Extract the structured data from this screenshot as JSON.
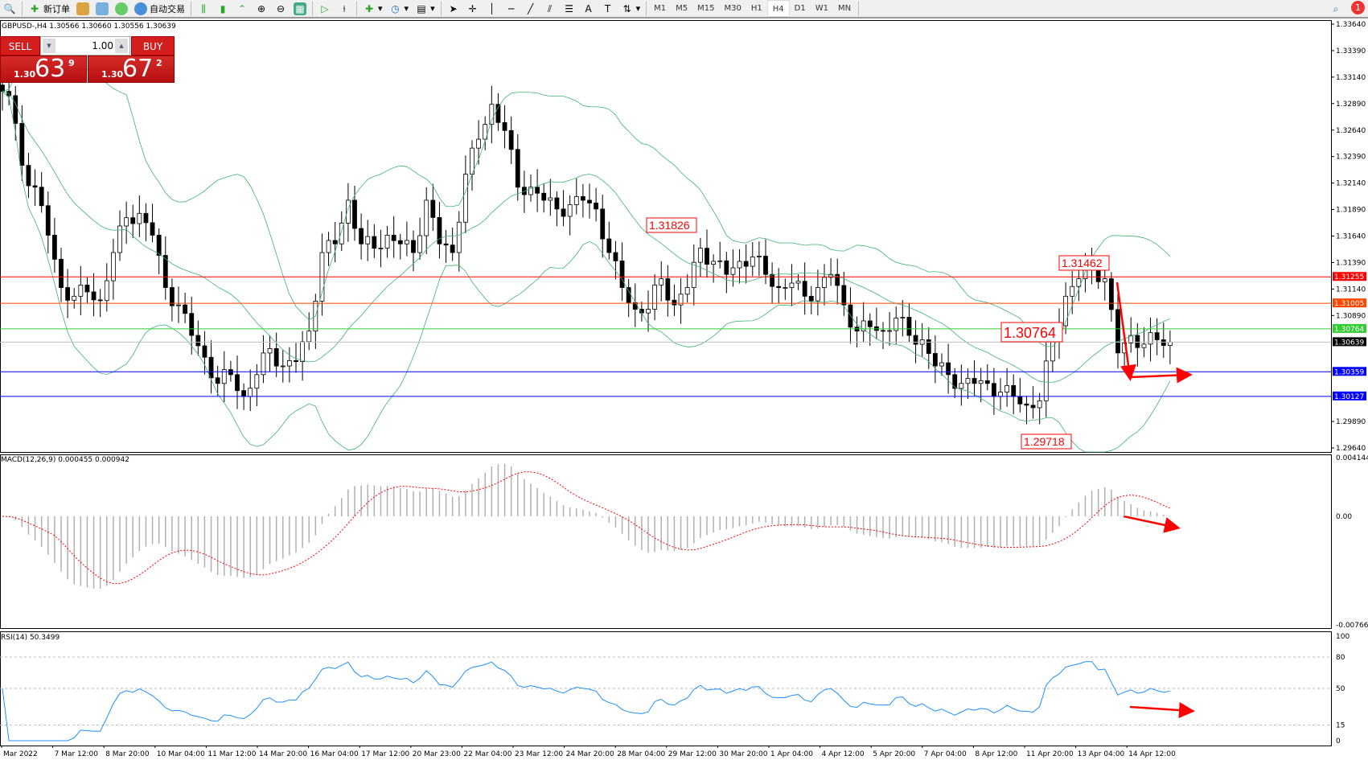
{
  "toolbar": {
    "new_order": "新订单",
    "auto_trading": "自动交易",
    "timeframes": [
      "M1",
      "M5",
      "M15",
      "M30",
      "H1",
      "H4",
      "D1",
      "W1",
      "MN"
    ],
    "selected_timeframe": "H4",
    "notifications": "1"
  },
  "chart_header": "GBPUSD-,H4  1.30566 1.30660 1.30556 1.30639",
  "trade_panel": {
    "sell": "SELL",
    "buy": "BUY",
    "lot": "1.00",
    "sell_small": "1.30",
    "sell_big": "63",
    "sell_tiny": "9",
    "buy_small": "1.30",
    "buy_big": "67",
    "buy_tiny": "2"
  },
  "macd_header": "MACD(12,26,9) 0.000455 0.000942",
  "rsi_header": "RSI(14) 50.3499",
  "chart_data": {
    "type": "candlestick",
    "symbol": "GBPUSD",
    "timeframe": "H4",
    "ylim": [
      1.2964,
      1.3364
    ],
    "price_ticks": [
      "1.33640",
      "1.33390",
      "1.33140",
      "1.32890",
      "1.32640",
      "1.32390",
      "1.32140",
      "1.31890",
      "1.31640",
      "1.31390",
      "1.31140",
      "1.30890",
      "1.29890",
      "1.29640"
    ],
    "approx_closes": [
      1.32965,
      1.32307,
      1.32101,
      1.31648,
      1.31154,
      1.31072,
      1.31113,
      1.31031,
      1.31484,
      1.31813,
      1.31854,
      1.31648,
      1.31154,
      1.3099,
      1.30702,
      1.30496,
      1.30249,
      1.30332,
      1.30126,
      1.30332,
      1.30578,
      1.30414,
      1.30455,
      1.30743,
      1.31484,
      1.31566,
      1.31978,
      1.31566,
      1.31525,
      1.31648,
      1.31566,
      1.31484,
      1.31978,
      1.31566,
      1.31484,
      1.32224,
      1.32554,
      1.32883,
      1.32636,
      1.32101,
      1.32101,
      1.31978,
      1.31895,
      1.31936,
      1.31978,
      1.31895,
      1.31484,
      1.31154,
      1.30949,
      1.30949,
      1.31237,
      1.3099,
      1.31154,
      1.31525,
      1.31401,
      1.31278,
      1.31401,
      1.31443,
      1.31278,
      1.31154,
      1.31196,
      1.31072,
      1.31154,
      1.31278,
      1.3099,
      1.30743,
      1.30784,
      1.30743,
      1.30866,
      1.30702,
      1.30661,
      1.30414,
      1.30332,
      1.30249,
      1.30249,
      1.30249,
      1.30167,
      1.30126,
      1.30043,
      1.30085,
      1.30661,
      1.31072,
      1.31237,
      1.3136,
      1.31237,
      1.30537,
      1.30702,
      1.3062,
      1.30661,
      1.30639
    ],
    "indicators": [
      "Bollinger Bands",
      "MACD(12,26,9)",
      "RSI(14)"
    ],
    "levels": [
      {
        "price": "1.31255",
        "color": "#ff0000"
      },
      {
        "price": "1.31005",
        "color": "#ff4500"
      },
      {
        "price": "1.30764",
        "color": "#32cd32"
      },
      {
        "price": "1.30639",
        "color": "#000000",
        "line": "#c0c0c0"
      },
      {
        "price": "1.30359",
        "color": "#0000ff"
      },
      {
        "price": "1.30127",
        "color": "#0000ff"
      }
    ],
    "annotations": [
      "1.31826",
      "1.31462",
      "1.30764",
      "1.29718"
    ],
    "macd_ticks": [
      "0.004144",
      "0.00",
      "-0.007664"
    ],
    "rsi_ticks": [
      "100",
      "80",
      "50",
      "15",
      "0"
    ],
    "time_labels": [
      "Mar 2022",
      "7 Mar 12:00",
      "8 Mar 20:00",
      "10 Mar 04:00",
      "11 Mar 12:00",
      "14 Mar 20:00",
      "16 Mar 04:00",
      "17 Mar 12:00",
      "20 Mar 23:00",
      "22 Mar 04:00",
      "23 Mar 12:00",
      "24 Mar 20:00",
      "28 Mar 04:00",
      "29 Mar 12:00",
      "30 Mar 20:00",
      "1 Apr 04:00",
      "4 Apr 12:00",
      "5 Apr 20:00",
      "7 Apr 04:00",
      "8 Apr 12:00",
      "11 Apr 20:00",
      "13 Apr 04:00",
      "14 Apr 12:00"
    ]
  }
}
